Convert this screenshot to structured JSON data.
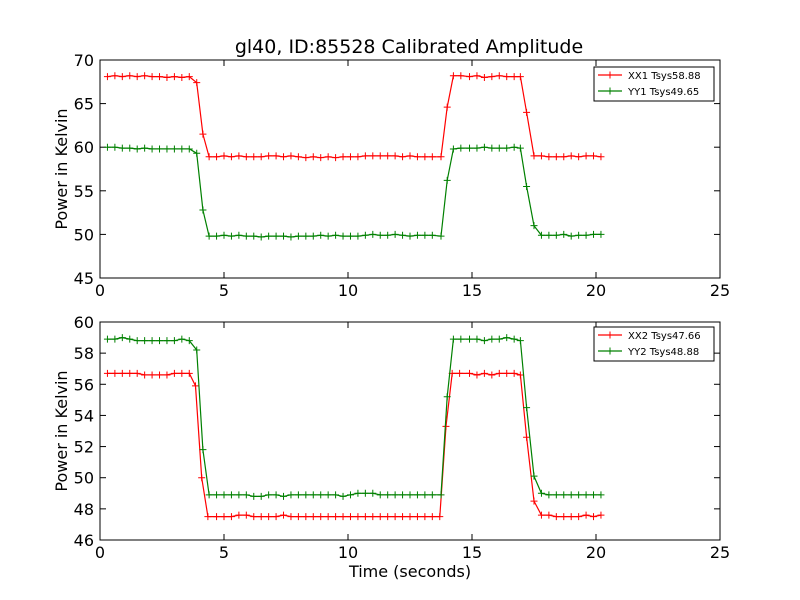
{
  "chart_data": {
    "title": "gl40, ID:85528 Calibrated Amplitude",
    "charts": [
      {
        "type": "line",
        "xlabel": "",
        "ylabel": "Power in Kelvin",
        "xlim": [
          0,
          25
        ],
        "ylim": [
          45,
          70
        ],
        "xticks": [
          0,
          5,
          10,
          15,
          20,
          25
        ],
        "yticks": [
          45,
          50,
          55,
          60,
          65,
          70
        ],
        "legend_position": "top-right",
        "series": [
          {
            "name": "XX1 Tsys58.88",
            "color": "#ff0000",
            "x": [
              0.3,
              0.6,
              0.9,
              1.2,
              1.5,
              1.8,
              2.1,
              2.4,
              2.7,
              3.0,
              3.3,
              3.6,
              3.9,
              4.15,
              4.4,
              4.7,
              5.0,
              5.3,
              5.6,
              5.9,
              6.2,
              6.5,
              6.8,
              7.1,
              7.4,
              7.7,
              8.0,
              8.3,
              8.6,
              8.9,
              9.2,
              9.5,
              9.8,
              10.1,
              10.4,
              10.7,
              11.0,
              11.3,
              11.6,
              11.9,
              12.2,
              12.5,
              12.8,
              13.1,
              13.4,
              13.75,
              14.0,
              14.25,
              14.55,
              14.9,
              15.2,
              15.5,
              15.8,
              16.1,
              16.4,
              16.7,
              16.95,
              17.2,
              17.5,
              17.8,
              18.1,
              18.4,
              18.7,
              19.0,
              19.3,
              19.6,
              19.9,
              20.2
            ],
            "y": [
              68.1,
              68.2,
              68.1,
              68.2,
              68.1,
              68.2,
              68.1,
              68.1,
              68.0,
              68.1,
              68.0,
              68.1,
              67.4,
              61.5,
              58.9,
              58.9,
              59.0,
              58.9,
              59.0,
              58.9,
              58.9,
              58.9,
              59.0,
              59.0,
              58.9,
              59.0,
              58.9,
              58.8,
              58.9,
              58.8,
              58.9,
              58.8,
              58.9,
              58.9,
              58.9,
              59.0,
              59.0,
              59.0,
              59.0,
              59.0,
              58.9,
              59.0,
              58.9,
              58.9,
              58.9,
              58.9,
              64.6,
              68.2,
              68.2,
              68.1,
              68.2,
              68.0,
              68.1,
              68.2,
              68.1,
              68.1,
              68.1,
              64.0,
              59.0,
              59.0,
              58.9,
              58.9,
              58.9,
              59.0,
              58.9,
              59.0,
              59.0,
              58.9
            ]
          },
          {
            "name": "YY1 Tsys49.65",
            "color": "#008000",
            "x": [
              0.3,
              0.6,
              0.9,
              1.2,
              1.5,
              1.8,
              2.1,
              2.4,
              2.7,
              3.0,
              3.3,
              3.6,
              3.9,
              4.15,
              4.4,
              4.7,
              5.0,
              5.3,
              5.6,
              5.9,
              6.2,
              6.5,
              6.8,
              7.1,
              7.4,
              7.7,
              8.0,
              8.3,
              8.6,
              8.9,
              9.2,
              9.5,
              9.8,
              10.1,
              10.4,
              10.7,
              11.0,
              11.3,
              11.6,
              11.9,
              12.2,
              12.5,
              12.8,
              13.1,
              13.4,
              13.75,
              14.0,
              14.25,
              14.55,
              14.9,
              15.2,
              15.5,
              15.8,
              16.1,
              16.4,
              16.7,
              16.95,
              17.2,
              17.5,
              17.8,
              18.1,
              18.4,
              18.7,
              19.0,
              19.3,
              19.6,
              19.9,
              20.2
            ],
            "y": [
              60.0,
              60.0,
              59.9,
              59.9,
              59.8,
              59.9,
              59.8,
              59.8,
              59.8,
              59.8,
              59.8,
              59.8,
              59.3,
              52.8,
              49.8,
              49.8,
              49.9,
              49.8,
              49.9,
              49.8,
              49.8,
              49.7,
              49.8,
              49.8,
              49.8,
              49.7,
              49.8,
              49.8,
              49.8,
              49.9,
              49.8,
              49.9,
              49.8,
              49.8,
              49.8,
              49.9,
              50.0,
              49.9,
              49.9,
              50.0,
              49.9,
              49.8,
              49.9,
              49.9,
              49.9,
              49.8,
              56.2,
              59.8,
              59.9,
              59.9,
              59.9,
              60.0,
              59.9,
              59.9,
              59.9,
              60.0,
              59.9,
              55.5,
              51.0,
              49.9,
              49.9,
              49.9,
              50.0,
              49.8,
              49.9,
              49.9,
              50.0,
              50.0
            ]
          }
        ]
      },
      {
        "type": "line",
        "xlabel": "Time (seconds)",
        "ylabel": "Power in Kelvin",
        "xlim": [
          0,
          25
        ],
        "ylim": [
          46,
          60
        ],
        "xticks": [
          0,
          5,
          10,
          15,
          20,
          25
        ],
        "yticks": [
          46,
          48,
          50,
          52,
          54,
          56,
          58,
          60
        ],
        "legend_position": "top-right",
        "series": [
          {
            "name": "XX2 Tsys47.66",
            "color": "#ff0000",
            "x": [
              0.3,
              0.6,
              0.9,
              1.2,
              1.5,
              1.8,
              2.1,
              2.4,
              2.7,
              3.0,
              3.3,
              3.6,
              3.85,
              4.1,
              4.35,
              4.7,
              5.0,
              5.3,
              5.6,
              5.9,
              6.2,
              6.5,
              6.8,
              7.1,
              7.4,
              7.7,
              8.0,
              8.3,
              8.6,
              8.9,
              9.2,
              9.5,
              9.8,
              10.1,
              10.4,
              10.7,
              11.0,
              11.3,
              11.6,
              11.9,
              12.2,
              12.5,
              12.8,
              13.1,
              13.4,
              13.7,
              13.95,
              14.2,
              14.5,
              14.9,
              15.2,
              15.5,
              15.8,
              16.1,
              16.4,
              16.7,
              16.95,
              17.2,
              17.5,
              17.8,
              18.1,
              18.4,
              18.7,
              19.0,
              19.3,
              19.6,
              19.9,
              20.2
            ],
            "y": [
              56.7,
              56.7,
              56.7,
              56.7,
              56.7,
              56.6,
              56.6,
              56.6,
              56.6,
              56.7,
              56.7,
              56.7,
              55.9,
              50.0,
              47.5,
              47.5,
              47.5,
              47.5,
              47.6,
              47.6,
              47.5,
              47.5,
              47.5,
              47.5,
              47.6,
              47.5,
              47.5,
              47.5,
              47.5,
              47.5,
              47.5,
              47.5,
              47.5,
              47.5,
              47.5,
              47.5,
              47.5,
              47.5,
              47.5,
              47.5,
              47.5,
              47.5,
              47.5,
              47.5,
              47.5,
              47.5,
              53.3,
              56.7,
              56.7,
              56.7,
              56.6,
              56.7,
              56.6,
              56.7,
              56.7,
              56.7,
              56.6,
              52.6,
              48.5,
              47.6,
              47.6,
              47.5,
              47.5,
              47.5,
              47.5,
              47.6,
              47.5,
              47.6
            ]
          },
          {
            "name": "YY2 Tsys48.88",
            "color": "#008000",
            "x": [
              0.3,
              0.6,
              0.9,
              1.2,
              1.5,
              1.8,
              2.1,
              2.4,
              2.7,
              3.0,
              3.3,
              3.6,
              3.9,
              4.15,
              4.4,
              4.7,
              5.0,
              5.3,
              5.6,
              5.9,
              6.2,
              6.5,
              6.8,
              7.1,
              7.4,
              7.7,
              8.0,
              8.3,
              8.6,
              8.9,
              9.2,
              9.5,
              9.8,
              10.1,
              10.4,
              10.7,
              11.0,
              11.3,
              11.6,
              11.9,
              12.2,
              12.5,
              12.8,
              13.1,
              13.4,
              13.75,
              14.0,
              14.25,
              14.55,
              14.9,
              15.2,
              15.5,
              15.8,
              16.1,
              16.4,
              16.7,
              16.95,
              17.2,
              17.5,
              17.8,
              18.1,
              18.4,
              18.7,
              19.0,
              19.3,
              19.6,
              19.9,
              20.2
            ],
            "y": [
              58.9,
              58.9,
              59.0,
              58.9,
              58.8,
              58.8,
              58.8,
              58.8,
              58.8,
              58.8,
              58.9,
              58.8,
              58.2,
              51.8,
              48.9,
              48.9,
              48.9,
              48.9,
              48.9,
              48.9,
              48.8,
              48.8,
              48.9,
              48.9,
              48.8,
              48.9,
              48.9,
              48.9,
              48.9,
              48.9,
              48.9,
              48.9,
              48.8,
              48.9,
              49.0,
              49.0,
              49.0,
              48.9,
              48.9,
              48.9,
              48.9,
              48.9,
              48.9,
              48.9,
              48.9,
              48.9,
              55.2,
              58.9,
              58.9,
              58.9,
              58.9,
              58.8,
              58.9,
              58.9,
              59.0,
              58.9,
              58.8,
              54.5,
              50.1,
              49.0,
              48.9,
              48.9,
              48.9,
              48.9,
              48.9,
              48.9,
              48.9,
              48.9
            ]
          }
        ]
      }
    ]
  }
}
